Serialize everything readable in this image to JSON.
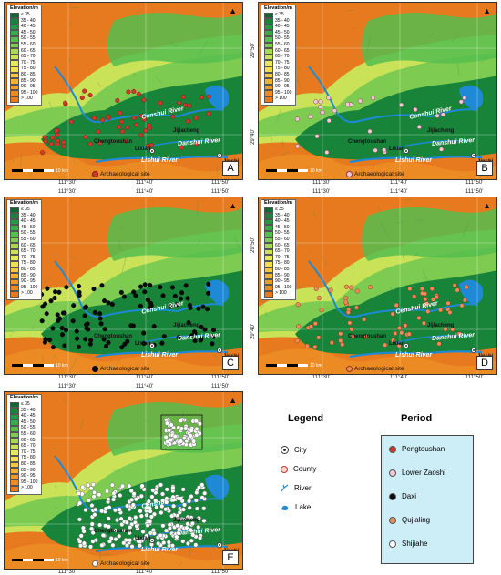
{
  "elevation_legend": {
    "title": "Elevation/m",
    "classes": [
      {
        "label": "≤ 35",
        "color": "#0b6a2f"
      },
      {
        "label": "35 - 40",
        "color": "#17843a"
      },
      {
        "label": "40 - 45",
        "color": "#239a44"
      },
      {
        "label": "45 - 50",
        "color": "#36ad4c"
      },
      {
        "label": "50 - 55",
        "color": "#56bd4f"
      },
      {
        "label": "55 - 60",
        "color": "#7dcc51"
      },
      {
        "label": "60 - 65",
        "color": "#a6d854"
      },
      {
        "label": "65 - 70",
        "color": "#c9e258"
      },
      {
        "label": "70 - 75",
        "color": "#e5e95d"
      },
      {
        "label": "75 - 80",
        "color": "#f3df4f"
      },
      {
        "label": "80 - 85",
        "color": "#f5c83f"
      },
      {
        "label": "85 - 90",
        "color": "#f3b234"
      },
      {
        "label": "90 - 95",
        "color": "#f09a2a"
      },
      {
        "label": "95 - 100",
        "color": "#ec8a24"
      },
      {
        "label": "> 100",
        "color": "#e77a1e"
      }
    ]
  },
  "ticks": {
    "top": [
      "111°30'",
      "111°40'",
      "111°50'"
    ],
    "left": [
      "29°50'",
      "29°40'"
    ],
    "right": [
      "29°50'",
      "29°40'"
    ]
  },
  "labels": {
    "censhui": "Censhui River",
    "danshui": "Danshui River",
    "lishui": "Lishui River",
    "jijiacheng": "Jijiacheng",
    "chengtoushan": "Chengtoushan",
    "lixian": "Lixian",
    "jinshi": "Jinshi",
    "scale": "10 km",
    "site_legend": "Archaeological site"
  },
  "panels": [
    {
      "letter": "A",
      "dot_color": "#d23a2a",
      "dot_stroke": "#7a1a12"
    },
    {
      "letter": "B",
      "dot_color": "#f3c7d4",
      "dot_stroke": "#8a3a55"
    },
    {
      "letter": "C",
      "dot_color": "#0a0a0a",
      "dot_stroke": "#000000"
    },
    {
      "letter": "D",
      "dot_color": "#f08a5a",
      "dot_stroke": "#8a3a1a"
    },
    {
      "letter": "E",
      "dot_color": "#ffffff",
      "dot_stroke": "#666666"
    }
  ],
  "legend": {
    "title": "Legend",
    "items": [
      {
        "label": "City",
        "icon": "city-icon"
      },
      {
        "label": "County",
        "icon": "county-icon"
      },
      {
        "label": "River",
        "icon": "river-icon"
      },
      {
        "label": "Lake",
        "icon": "lake-icon"
      }
    ]
  },
  "period": {
    "title": "Period",
    "items": [
      {
        "label": "Pengtoushan",
        "color": "#d23a2a"
      },
      {
        "label": "Lower Zaoshi",
        "color": "#f3c7d4"
      },
      {
        "label": "Daxi",
        "color": "#0a0a0a"
      },
      {
        "label": "Qujialing",
        "color": "#f08a5a"
      },
      {
        "label": "Shijiahe",
        "color": "#ffffff"
      }
    ]
  },
  "site_counts": {
    "A": 60,
    "B": 28,
    "C": 110,
    "D": 70,
    "E": 330
  }
}
